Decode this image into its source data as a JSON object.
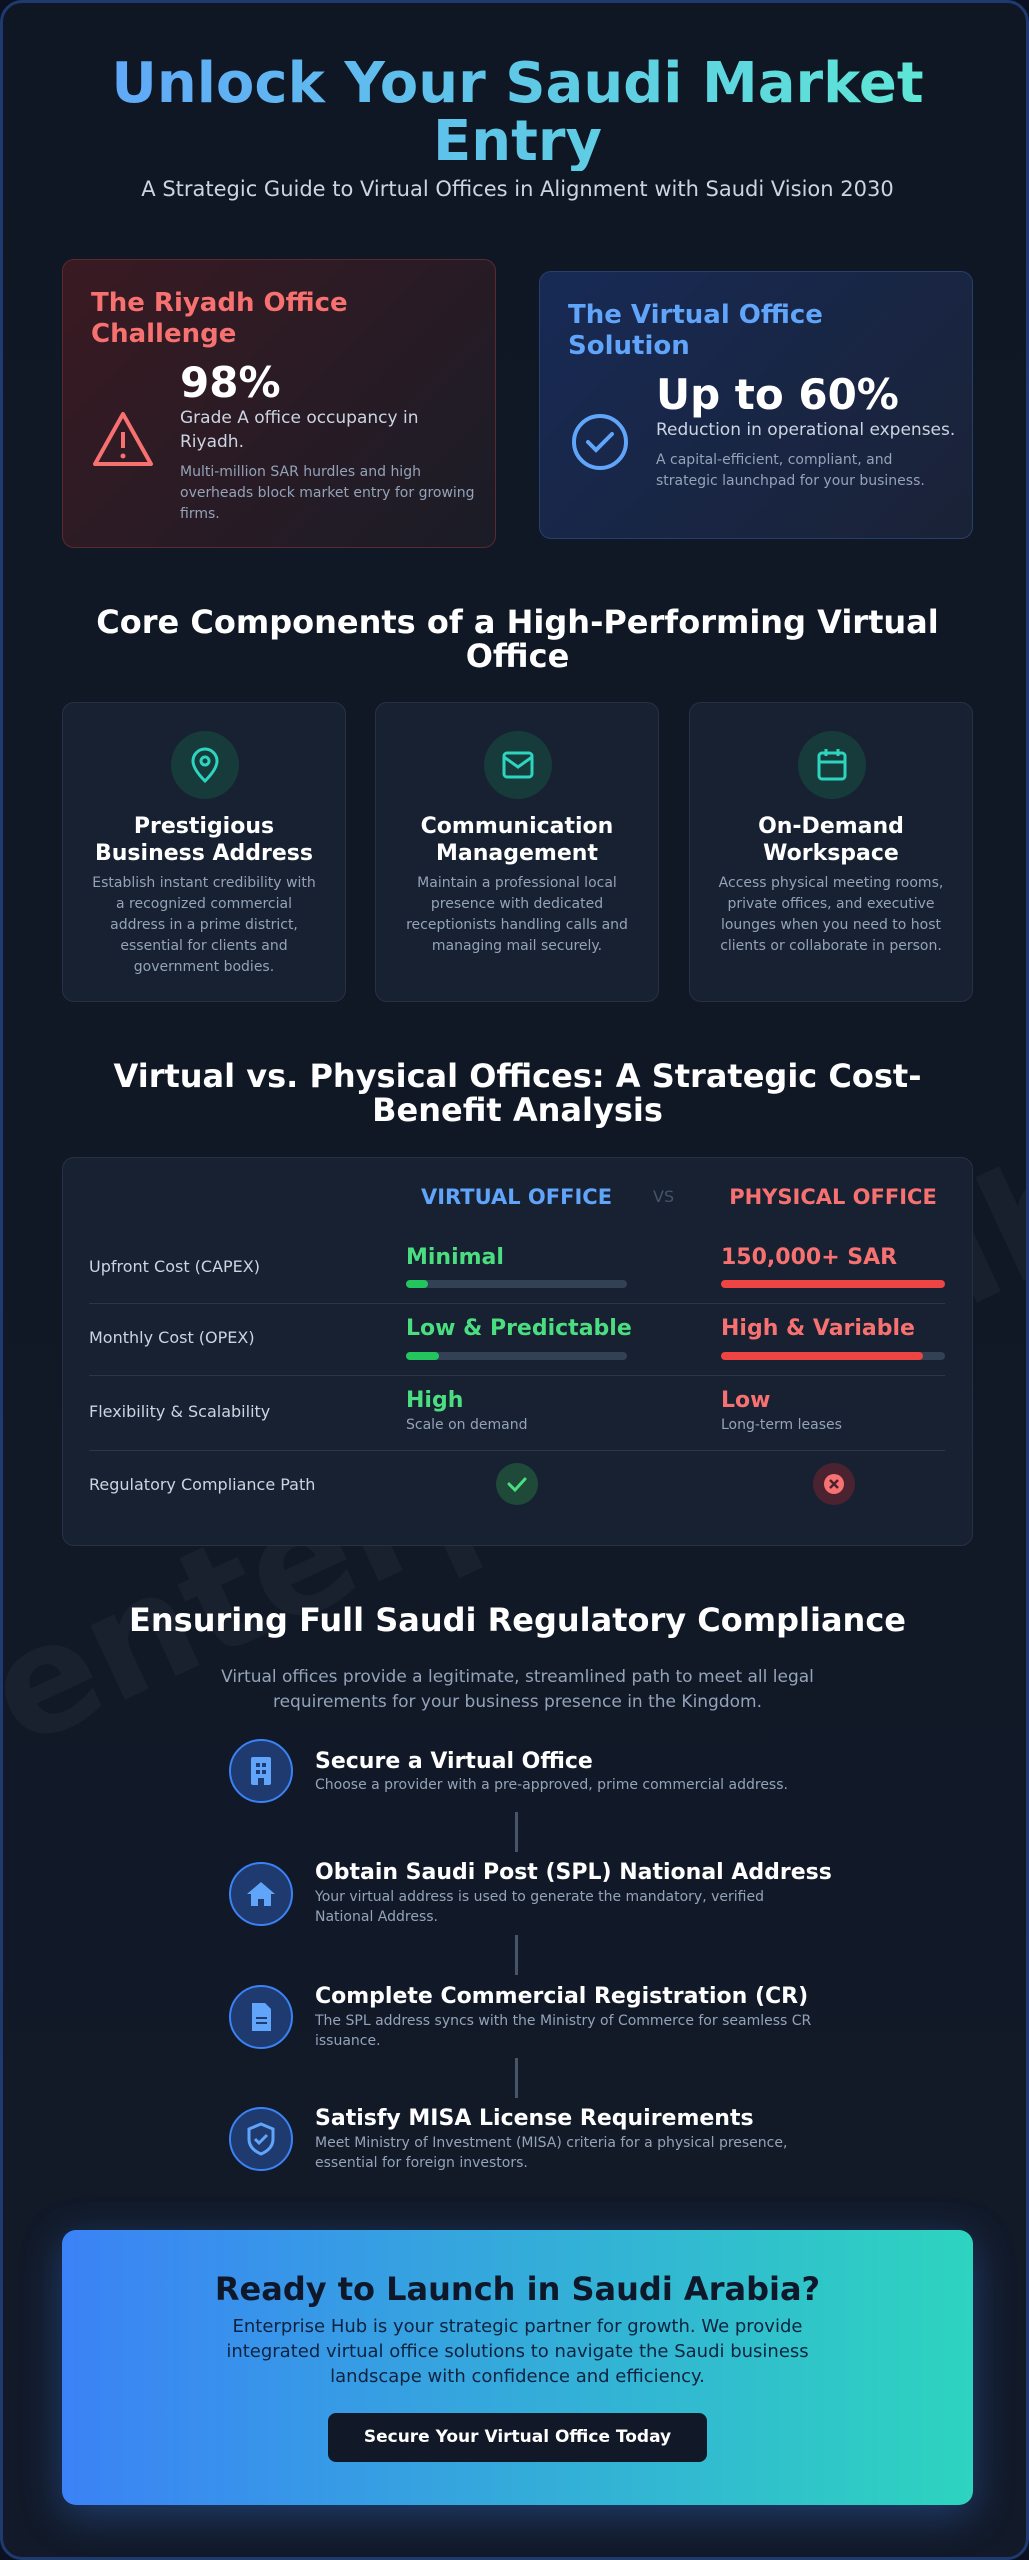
{
  "header": {
    "title": "Unlock Your Saudi Market Entry",
    "subtitle": "A Strategic Guide to Virtual Offices in Alignment with Saudi Vision 2030"
  },
  "watermark": "enterprisehub.sa",
  "cards": [
    {
      "title": "The Riyadh Office Challenge",
      "stat": "98%",
      "stat_label": "Grade A office occupancy in Riyadh.",
      "note": "Multi-million SAR hurdles and high overheads block market entry for growing firms."
    },
    {
      "title": "The Virtual Office Solution",
      "stat": "Up to 60%",
      "stat_label": "Reduction in operational expenses.",
      "note": "A capital-efficient, compliant, and strategic launchpad for your business."
    }
  ],
  "components": {
    "heading": "Core Components of a High-Performing Virtual Office",
    "items": [
      {
        "title": "Prestigious Business Address",
        "text": "Establish instant credibility with a recognized commercial address in a prime district, essential for clients and government bodies."
      },
      {
        "title": "Communication Management",
        "text": "Maintain a professional local presence with dedicated receptionists handling calls and managing mail securely."
      },
      {
        "title": "On-Demand Workspace",
        "text": "Access physical meeting rooms, private offices, and executive lounges when you need to host clients or collaborate in person."
      }
    ]
  },
  "comparison": {
    "heading": "Virtual vs. Physical Offices: A Strategic Cost-Benefit Analysis",
    "columns": [
      "VIRTUAL OFFICE",
      "VS",
      "PHYSICAL OFFICE"
    ],
    "rows": [
      {
        "label": "Upfront Cost (CAPEX)",
        "virtual": "Minimal",
        "physical": "150,000+ SAR"
      },
      {
        "label": "Monthly Cost (OPEX)",
        "virtual": "Low & Predictable",
        "physical": "High & Variable"
      },
      {
        "label": "Flexibility & Scalability",
        "virtual": "High",
        "virtual_note": "Scale on demand",
        "physical": "Low",
        "physical_note": "Long-term leases"
      },
      {
        "label": "Regulatory Compliance Path"
      }
    ]
  },
  "compliance": {
    "heading": "Ensuring Full Saudi Regulatory Compliance",
    "intro": "Virtual offices provide a legitimate, streamlined path to meet all legal requirements for your business presence in the Kingdom.",
    "steps": [
      {
        "title": "Secure a Virtual Office",
        "text": "Choose a provider with a pre-approved, prime commercial address."
      },
      {
        "title": "Obtain Saudi Post (SPL) National Address",
        "text": "Your virtual address is used to generate the mandatory, verified National Address."
      },
      {
        "title": "Complete Commercial Registration (CR)",
        "text": "The SPL address syncs with the Ministry of Commerce for seamless CR issuance."
      },
      {
        "title": "Satisfy MISA License Requirements",
        "text": "Meet Ministry of Investment (MISA) criteria for a physical presence, essential for foreign investors."
      }
    ]
  },
  "cta": {
    "title": "Ready to Launch in Saudi Arabia?",
    "text": "Enterprise Hub is your strategic partner for growth. We provide integrated virtual office solutions to navigate the Saudi business landscape with confidence and efficiency.",
    "button": "Secure Your Virtual Office Today"
  }
}
